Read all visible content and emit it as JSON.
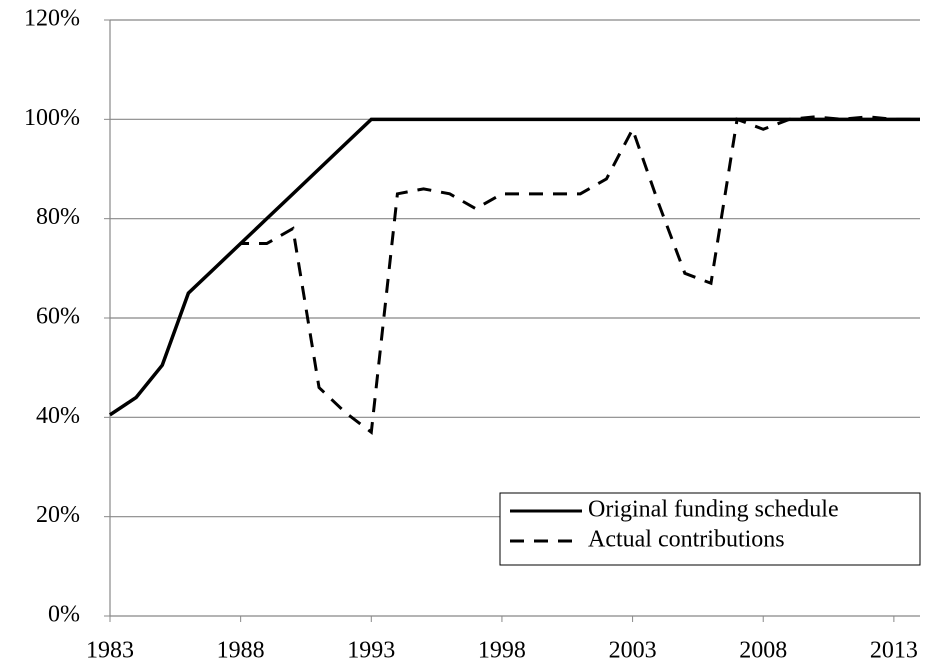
{
  "chart_data": {
    "type": "line",
    "x": [
      1983,
      1984,
      1985,
      1986,
      1987,
      1988,
      1989,
      1990,
      1991,
      1992,
      1993,
      1994,
      1995,
      1996,
      1997,
      1998,
      1999,
      2000,
      2001,
      2002,
      2003,
      2004,
      2005,
      2006,
      2007,
      2008,
      2009,
      2010,
      2011,
      2012,
      2013,
      2014
    ],
    "series": [
      {
        "name": "Original funding schedule",
        "color": "#000000",
        "dash": false,
        "values": [
          40.5,
          44,
          50.5,
          65,
          70,
          75,
          80,
          85,
          90,
          95,
          100,
          100,
          100,
          100,
          100,
          100,
          100,
          100,
          100,
          100,
          100,
          100,
          100,
          100,
          100,
          100,
          100,
          100,
          100,
          100,
          100,
          100
        ]
      },
      {
        "name": "Actual contributions",
        "color": "#000000",
        "dash": true,
        "values": [
          40.5,
          44,
          50.5,
          65,
          70,
          75,
          75,
          78,
          46,
          41,
          37,
          85,
          86,
          85,
          82,
          85,
          85,
          85,
          85,
          88,
          98,
          83,
          69,
          67,
          100,
          98,
          100,
          100.5,
          100,
          100.5,
          100,
          100
        ]
      }
    ],
    "xlim": [
      1983,
      2014
    ],
    "xticks": [
      1983,
      1988,
      1993,
      1998,
      2003,
      2008,
      2013
    ],
    "ylim": [
      0,
      120
    ],
    "yticks": [
      {
        "value": 0,
        "label": "0%"
      },
      {
        "value": 20,
        "label": "20%"
      },
      {
        "value": 40,
        "label": "40%"
      },
      {
        "value": 60,
        "label": "60%"
      },
      {
        "value": 80,
        "label": "80%"
      },
      {
        "value": 100,
        "label": "100%"
      },
      {
        "value": 120,
        "label": "120%"
      }
    ],
    "grid": true,
    "legend": "lower right"
  }
}
